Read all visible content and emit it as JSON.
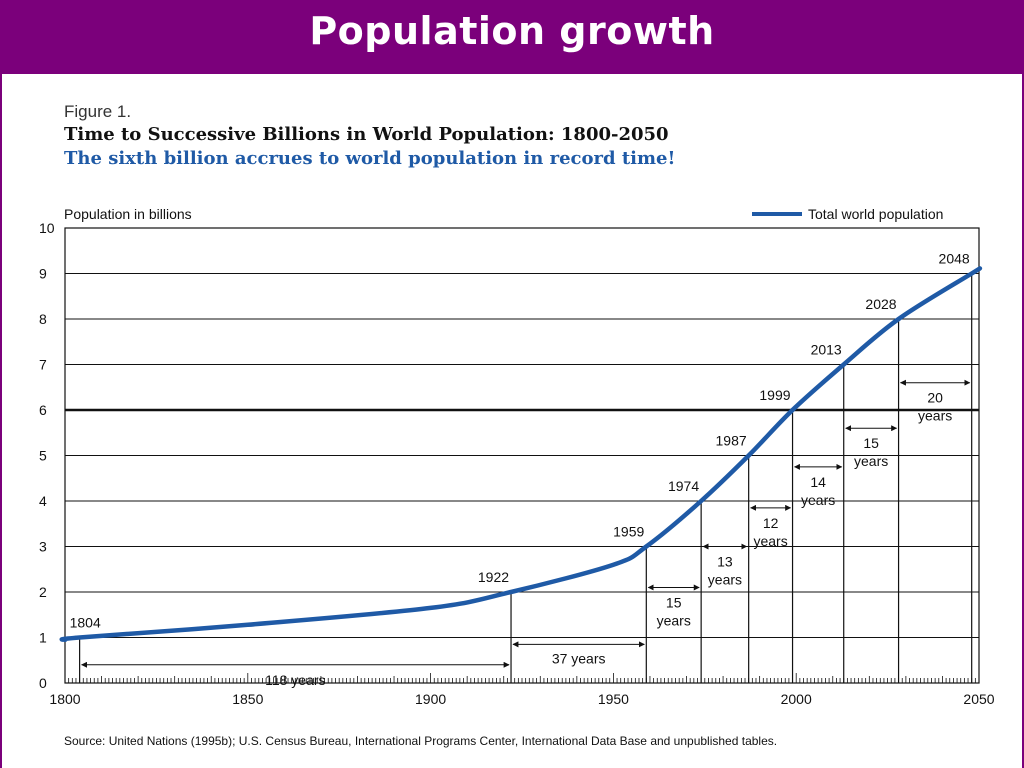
{
  "slide": {
    "title": "Population growth"
  },
  "figure": {
    "label": "Figure 1.",
    "title": "Time to Successive Billions in World Population:  1800-2050",
    "subtitle": "The sixth billion accrues to world population in record time!",
    "source": "Source:  United Nations (1995b); U.S. Census Bureau, International Programs Center, International Data Base and unpublished tables."
  },
  "chart_data": {
    "type": "line",
    "ylabel": "Population in billions",
    "legend": {
      "label": "Total world population",
      "placement": "top-right",
      "color": "#1f5aa6"
    },
    "xlim": [
      1800,
      2050
    ],
    "ylim": [
      0,
      10
    ],
    "xticks": [
      1800,
      1850,
      1900,
      1950,
      2000,
      2050
    ],
    "yticks": [
      0,
      1,
      2,
      3,
      4,
      5,
      6,
      7,
      8,
      9,
      10
    ],
    "series": [
      {
        "color": "#1f5aa6",
        "x": [
          1800,
          1804,
          1850,
          1900,
          1922,
          1950,
          1959,
          1974,
          1987,
          1999,
          2013,
          2028,
          2048,
          2052
        ],
        "y": [
          0.95,
          1.0,
          1.28,
          1.65,
          2.0,
          2.6,
          3.0,
          4.0,
          5.0,
          6.0,
          7.0,
          8.0,
          9.0,
          9.1
        ]
      }
    ],
    "milestones": [
      {
        "year": 1804,
        "billion": 1,
        "label": "1804"
      },
      {
        "year": 1922,
        "billion": 2,
        "label": "1922"
      },
      {
        "year": 1959,
        "billion": 3,
        "label": "1959"
      },
      {
        "year": 1974,
        "billion": 4,
        "label": "1974"
      },
      {
        "year": 1987,
        "billion": 5,
        "label": "1987"
      },
      {
        "year": 1999,
        "billion": 6,
        "label": "1999"
      },
      {
        "year": 2013,
        "billion": 7,
        "label": "2013"
      },
      {
        "year": 2028,
        "billion": 8,
        "label": "2028"
      },
      {
        "year": 2048,
        "billion": 9,
        "label": "2048"
      }
    ],
    "intervals": [
      {
        "from": 1804,
        "to": 1922,
        "years": 118,
        "label": [
          "118 years"
        ],
        "level": 0.4
      },
      {
        "from": 1922,
        "to": 1959,
        "years": 37,
        "label": [
          "37 years"
        ],
        "level": 0.85
      },
      {
        "from": 1959,
        "to": 1974,
        "years": 15,
        "label": [
          "15",
          "years"
        ],
        "level": 2.1
      },
      {
        "from": 1974,
        "to": 1987,
        "years": 13,
        "label": [
          "13",
          "years"
        ],
        "level": 3.0
      },
      {
        "from": 1987,
        "to": 1999,
        "years": 12,
        "label": [
          "12",
          "years"
        ],
        "level": 3.85
      },
      {
        "from": 1999,
        "to": 2013,
        "years": 14,
        "label": [
          "14",
          "years"
        ],
        "level": 4.75
      },
      {
        "from": 2013,
        "to": 2028,
        "years": 15,
        "label": [
          "15",
          "years"
        ],
        "level": 5.6
      },
      {
        "from": 2028,
        "to": 2048,
        "years": 20,
        "label": [
          "20",
          "years"
        ],
        "level": 6.6
      }
    ],
    "emphasized_gridline": 6
  }
}
